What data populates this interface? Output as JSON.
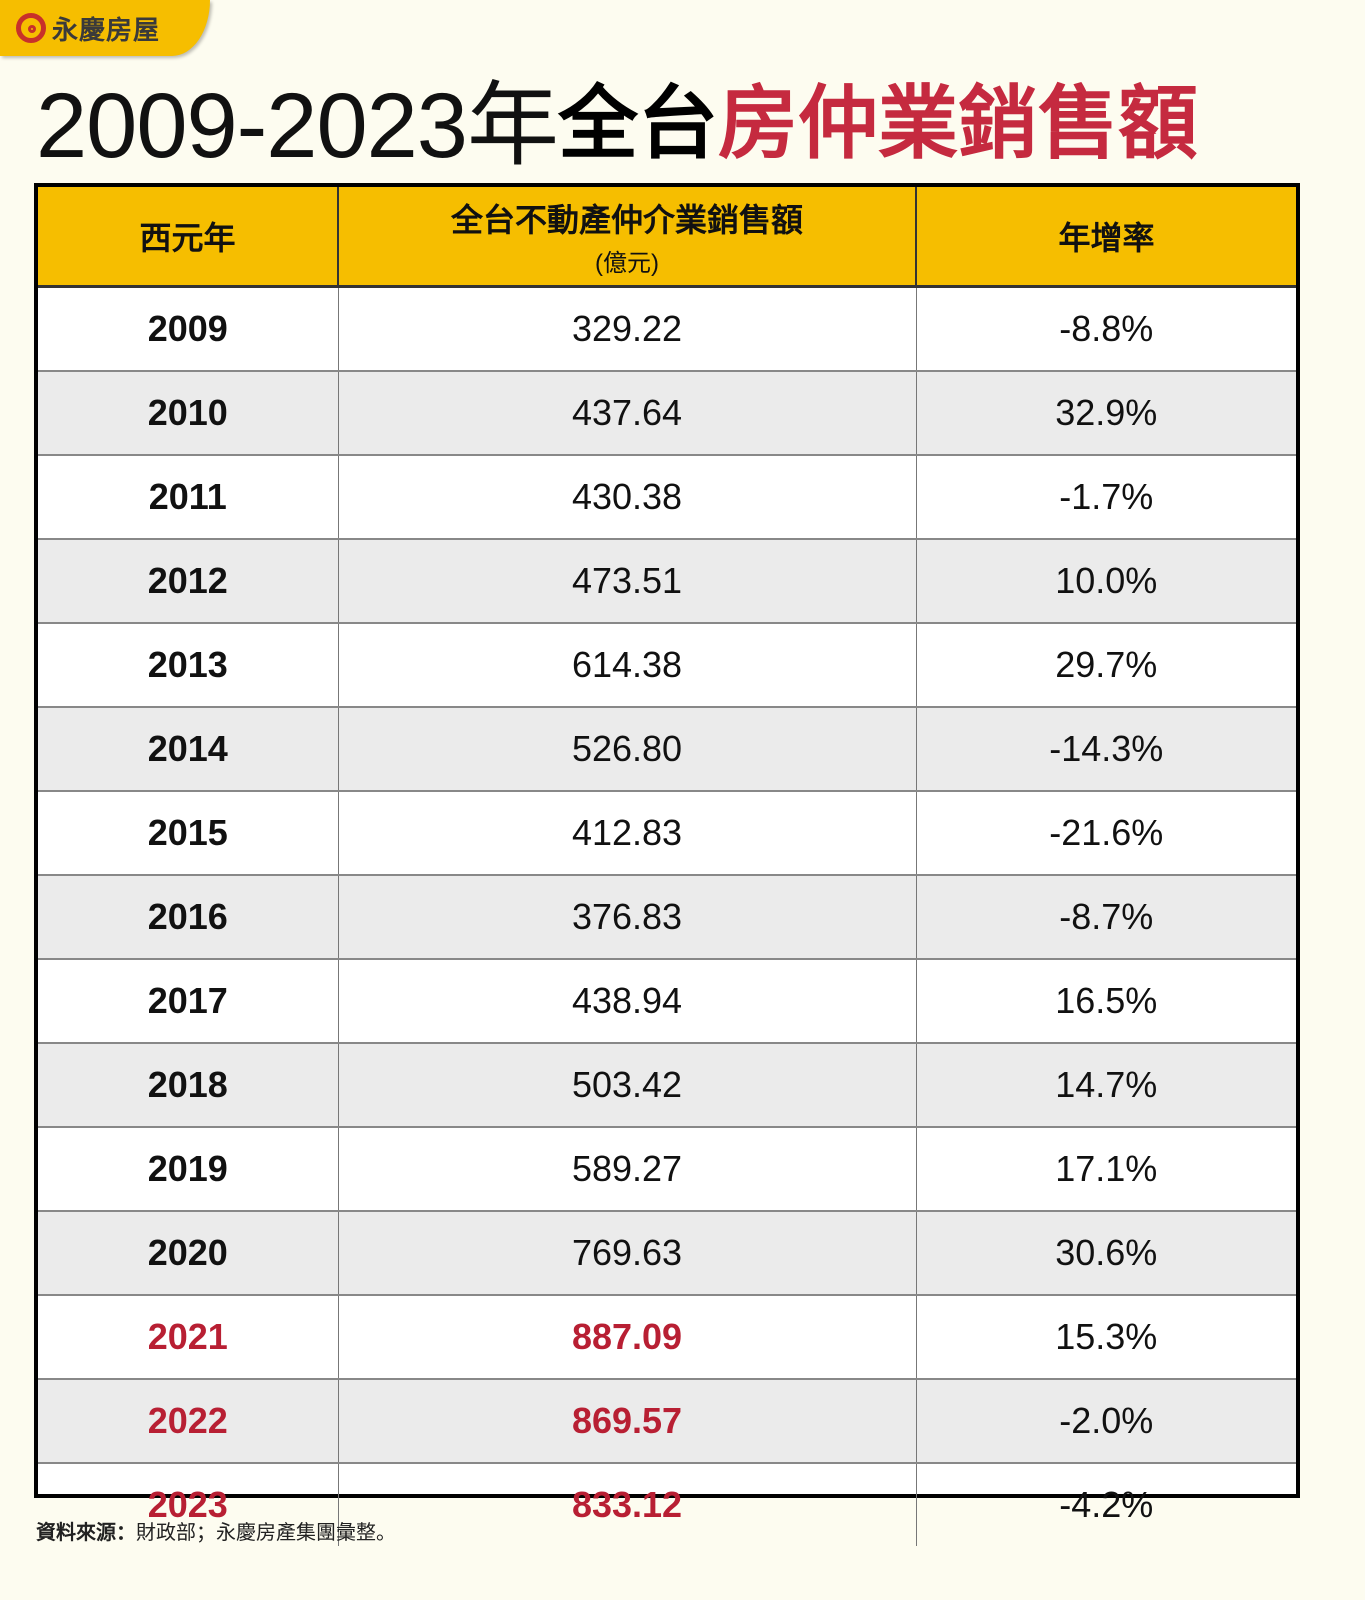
{
  "logo": {
    "icon": "yungching-logo-icon",
    "text": "永慶房屋"
  },
  "title": {
    "years": "2009-2023年",
    "black": "全台",
    "red": "房仲業銷售額"
  },
  "table": {
    "headers": {
      "year": "西元年",
      "amount": "全台不動產仲介業銷售額",
      "amount_unit": "(億元)",
      "growth": "年增率"
    },
    "rows": [
      {
        "year": "2009",
        "amount": "329.22",
        "growth": "-8.8%"
      },
      {
        "year": "2010",
        "amount": "437.64",
        "growth": "32.9%"
      },
      {
        "year": "2011",
        "amount": "430.38",
        "growth": "-1.7%"
      },
      {
        "year": "2012",
        "amount": "473.51",
        "growth": "10.0%"
      },
      {
        "year": "2013",
        "amount": "614.38",
        "growth": "29.7%"
      },
      {
        "year": "2014",
        "amount": "526.80",
        "growth": "-14.3%"
      },
      {
        "year": "2015",
        "amount": "412.83",
        "growth": "-21.6%"
      },
      {
        "year": "2016",
        "amount": "376.83",
        "growth": "-8.7%"
      },
      {
        "year": "2017",
        "amount": "438.94",
        "growth": "16.5%"
      },
      {
        "year": "2018",
        "amount": "503.42",
        "growth": "14.7%"
      },
      {
        "year": "2019",
        "amount": "589.27",
        "growth": "17.1%"
      },
      {
        "year": "2020",
        "amount": "769.63",
        "growth": "30.6%"
      },
      {
        "year": "2021",
        "amount": "887.09",
        "growth": "15.3%"
      },
      {
        "year": "2022",
        "amount": "869.57",
        "growth": "-2.0%"
      },
      {
        "year": "2023",
        "amount": "833.12",
        "growth": "-4.2%"
      }
    ],
    "highlight_years": [
      "2021",
      "2022",
      "2023"
    ]
  },
  "source": {
    "label": "資料來源：",
    "text": "財政部；永慶房產集團彙整。"
  },
  "colors": {
    "header_bg": "#f6be00",
    "highlight_red": "#b81f33",
    "title_red": "#c52a3f",
    "page_bg": "#fdfcf0",
    "alt_row": "#ebebeb"
  },
  "chart_data": {
    "type": "table",
    "title": "2009-2023年全台房仲業銷售額",
    "columns": [
      "西元年",
      "全台不動產仲介業銷售額(億元)",
      "年增率"
    ],
    "categories": [
      "2009",
      "2010",
      "2011",
      "2012",
      "2013",
      "2014",
      "2015",
      "2016",
      "2017",
      "2018",
      "2019",
      "2020",
      "2021",
      "2022",
      "2023"
    ],
    "series": [
      {
        "name": "全台不動產仲介業銷售額(億元)",
        "values": [
          329.22,
          437.64,
          430.38,
          473.51,
          614.38,
          526.8,
          412.83,
          376.83,
          438.94,
          503.42,
          589.27,
          769.63,
          887.09,
          869.57,
          833.12
        ]
      },
      {
        "name": "年增率(%)",
        "values": [
          -8.8,
          32.9,
          -1.7,
          10.0,
          29.7,
          -14.3,
          -21.6,
          -8.7,
          16.5,
          14.7,
          17.1,
          30.6,
          15.3,
          -2.0,
          -4.2
        ]
      }
    ],
    "highlighted": [
      "2021",
      "2022",
      "2023"
    ],
    "source": "資料來源：財政部；永慶房產集團彙整。"
  }
}
